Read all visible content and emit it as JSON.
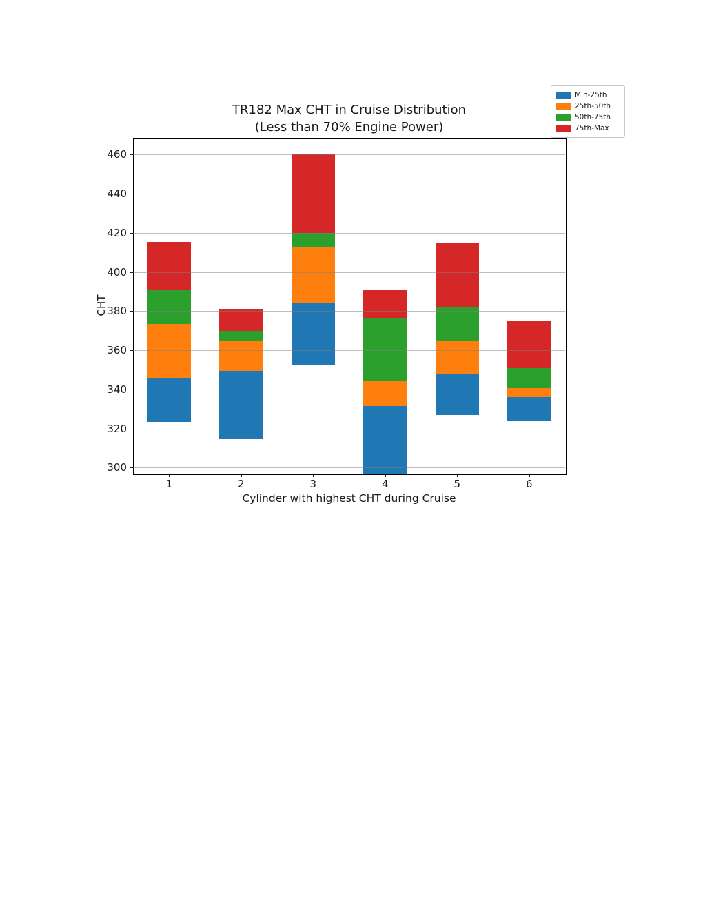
{
  "page": {
    "background": "#ffffff"
  },
  "chart_data": {
    "type": "bar",
    "stacked": true,
    "orientation": "vertical",
    "title": "TR182 Max CHT in Cruise Distribution",
    "subtitle": "(Less than 70% Engine Power)",
    "xlabel": "Cylinder with highest CHT during Cruise",
    "ylabel": "CHT",
    "categories": [
      "1",
      "2",
      "3",
      "4",
      "5",
      "6"
    ],
    "y_ticks": [
      300,
      320,
      340,
      360,
      380,
      400,
      420,
      440,
      460
    ],
    "ylim": [
      297,
      468.5
    ],
    "grid": "horizontal gridlines, light gray, drawn over bars",
    "legend_position": "upper right, above plot area",
    "legend": [
      {
        "label": "Min-25th",
        "color": "#1f77b4"
      },
      {
        "label": "25th-50th",
        "color": "#ff7f0e"
      },
      {
        "label": "50th-75th",
        "color": "#2ca02c"
      },
      {
        "label": "75th-Max",
        "color": "#d62728"
      }
    ],
    "bars": [
      {
        "category": "1",
        "min": 323.5,
        "p25": 346.0,
        "p50": 373.5,
        "p75": 390.5,
        "max": 415.5
      },
      {
        "category": "2",
        "min": 314.5,
        "p25": 349.5,
        "p50": 364.5,
        "p75": 370.0,
        "max": 381.0
      },
      {
        "category": "3",
        "min": 352.5,
        "p25": 384.0,
        "p50": 412.5,
        "p75": 420.0,
        "max": 460.5
      },
      {
        "category": "4",
        "min": 297.0,
        "p25": 331.5,
        "p50": 344.5,
        "p75": 376.5,
        "max": 391.0,
        "clipped_at_axis_bottom": true
      },
      {
        "category": "5",
        "min": 327.0,
        "p25": 348.0,
        "p50": 365.0,
        "p75": 382.0,
        "max": 414.5
      },
      {
        "category": "6",
        "min": 324.0,
        "p25": 336.0,
        "p50": 340.5,
        "p75": 351.0,
        "max": 375.0
      }
    ]
  },
  "colors": {
    "axis_text": "#1a1a1a",
    "spine": "#000000",
    "gridline": "rgba(128,128,128,0.5)",
    "legend_border": "#c8c8c8",
    "background": "#ffffff"
  }
}
